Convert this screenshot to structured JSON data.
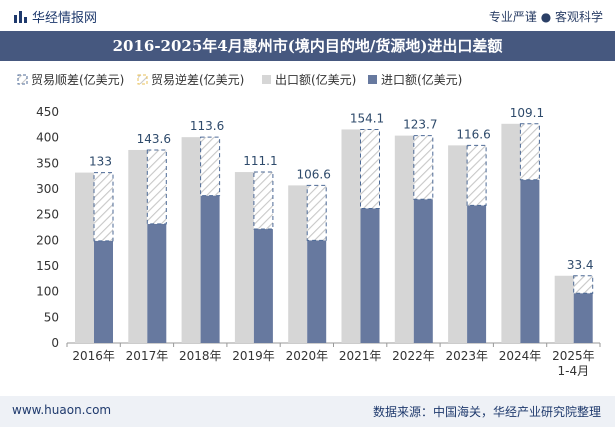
{
  "header": {
    "brand": "华经情报网",
    "right_text": "专业严谨 ● 客观科学"
  },
  "title": "2016-2025年4月惠州市(境内目的地/货源地)进出口差额",
  "footer": {
    "left": "www.huaon.com",
    "right": "数据来源：中国海关，华经产业研究院整理"
  },
  "colors": {
    "export": "#d6d6d6",
    "import": "#67799f",
    "surplus_outline": "#4d6a96",
    "deficit_outline": "#e8c05a",
    "title_bg": "#46587f"
  },
  "chart_data": {
    "type": "bar",
    "categories": [
      "2016年",
      "2017年",
      "2018年",
      "2019年",
      "2020年",
      "2021年",
      "2022年",
      "2023年",
      "2024年",
      "2025年\n1-4月"
    ],
    "series": [
      {
        "name": "贸易顺差(亿美元)",
        "values": [
          133,
          143.6,
          113.6,
          111.1,
          106.6,
          154.1,
          123.7,
          116.6,
          109.1,
          33.4
        ]
      },
      {
        "name": "贸易逆差(亿美元)",
        "values": [
          0,
          0,
          0,
          0,
          0,
          0,
          0,
          0,
          0,
          0
        ]
      },
      {
        "name": "出口额(亿美元)",
        "values": [
          332,
          376,
          401,
          333,
          307,
          416,
          404,
          385,
          427,
          131
        ]
      },
      {
        "name": "进口额(亿美元)",
        "values": [
          199,
          232,
          287,
          222,
          200,
          262,
          280,
          268,
          318,
          97
        ]
      }
    ],
    "data_labels": [
      "133",
      "143.6",
      "113.6",
      "111.1",
      "106.6",
      "154.1",
      "123.7",
      "116.6",
      "109.1",
      "33.4"
    ],
    "y_ticks": [
      0,
      50,
      100,
      150,
      200,
      250,
      300,
      350,
      400,
      450
    ],
    "ylim": [
      0,
      450
    ],
    "legend_position": "top-left",
    "grid": false
  }
}
